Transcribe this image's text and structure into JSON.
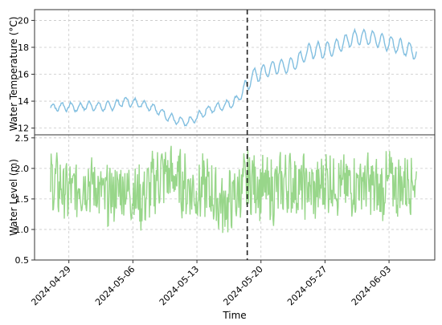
{
  "chart_data": [
    {
      "type": "line",
      "ylabel": "Water Temperature (°C)",
      "ylim": [
        11.5,
        20.8
      ],
      "yticks": [
        12,
        14,
        16,
        18,
        20
      ],
      "grid": true,
      "series": [
        {
          "x": [
            "2024-04-27",
            "2024-04-28",
            "2024-04-29",
            "2024-04-30",
            "2024-05-01",
            "2024-05-02",
            "2024-05-03",
            "2024-05-04",
            "2024-05-05",
            "2024-05-06",
            "2024-05-07",
            "2024-05-08",
            "2024-05-09",
            "2024-05-10",
            "2024-05-11",
            "2024-05-12",
            "2024-05-13",
            "2024-05-14",
            "2024-05-15",
            "2024-05-16",
            "2024-05-17",
            "2024-05-18",
            "2024-05-19",
            "2024-05-20",
            "2024-05-21",
            "2024-05-22",
            "2024-05-23",
            "2024-05-24",
            "2024-05-25",
            "2024-05-26",
            "2024-05-27",
            "2024-05-28",
            "2024-05-29",
            "2024-05-30",
            "2024-05-31",
            "2024-06-01",
            "2024-06-02",
            "2024-06-03",
            "2024-06-04",
            "2024-06-05",
            "2024-06-06"
          ],
          "values": [
            13.5,
            13.6,
            13.6,
            13.5,
            13.7,
            13.6,
            13.6,
            13.7,
            14.0,
            13.9,
            13.8,
            13.6,
            13.2,
            12.8,
            12.5,
            12.4,
            12.8,
            13.3,
            13.5,
            13.7,
            13.9,
            14.6,
            15.8,
            16.1,
            16.4,
            16.6,
            16.6,
            17.0,
            17.6,
            17.8,
            17.8,
            18.0,
            18.3,
            18.7,
            18.8,
            18.7,
            18.5,
            18.3,
            18.1,
            17.9,
            17.6
          ]
        }
      ]
    },
    {
      "type": "line",
      "xlabel": "Time",
      "ylabel": "Water Level (m)",
      "ylim": [
        0.5,
        2.55
      ],
      "yticks": [
        0.5,
        1.0,
        1.5,
        2.0,
        2.5
      ],
      "xticks": [
        "2024-04-29",
        "2024-05-06",
        "2024-05-13",
        "2024-05-20",
        "2024-05-27",
        "2024-06-03"
      ],
      "grid": true,
      "series": [
        {
          "x": [
            "2024-04-27",
            "2024-04-28",
            "2024-04-29",
            "2024-04-30",
            "2024-05-01",
            "2024-05-02",
            "2024-05-03",
            "2024-05-04",
            "2024-05-05",
            "2024-05-06",
            "2024-05-07",
            "2024-05-08",
            "2024-05-09",
            "2024-05-10",
            "2024-05-11",
            "2024-05-12",
            "2024-05-13",
            "2024-05-14",
            "2024-05-15",
            "2024-05-16",
            "2024-05-17",
            "2024-05-18",
            "2024-05-19",
            "2024-05-20",
            "2024-05-21",
            "2024-05-22",
            "2024-05-23",
            "2024-05-24",
            "2024-05-25",
            "2024-05-26",
            "2024-05-27",
            "2024-05-28",
            "2024-05-29",
            "2024-05-30",
            "2024-05-31",
            "2024-06-01",
            "2024-06-02",
            "2024-06-03",
            "2024-06-04",
            "2024-06-05",
            "2024-06-06"
          ],
          "values": [
            1.8,
            1.7,
            1.6,
            1.7,
            1.8,
            1.7,
            1.5,
            1.6,
            1.7,
            1.6,
            1.5,
            1.7,
            1.9,
            1.9,
            1.8,
            1.7,
            1.6,
            1.7,
            1.5,
            1.4,
            1.5,
            1.7,
            1.8,
            1.7,
            1.6,
            1.7,
            1.8,
            1.7,
            1.7,
            1.6,
            1.8,
            1.8,
            1.7,
            1.7,
            1.8,
            1.7,
            1.6,
            1.8,
            1.7,
            1.8,
            1.8
          ]
        }
      ]
    }
  ],
  "event_date": "2024-05-18T12:00"
}
